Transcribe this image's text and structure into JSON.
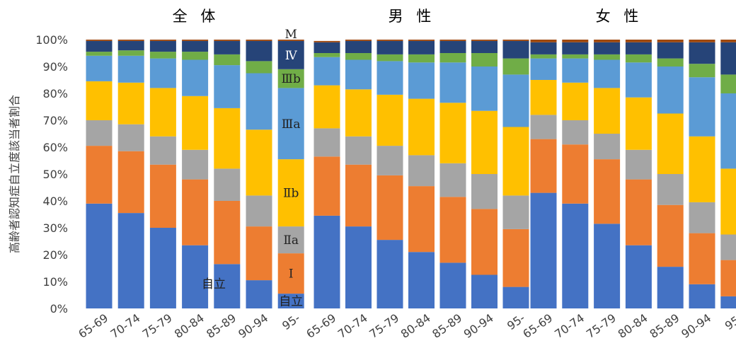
{
  "chart_data": {
    "type": "bar",
    "stacked": true,
    "ylabel": "高齢者認知症自立度該当者割合",
    "ylim": [
      0,
      100
    ],
    "yticks": [
      "0%",
      "10%",
      "20%",
      "30%",
      "40%",
      "50%",
      "60%",
      "70%",
      "80%",
      "90%",
      "100%"
    ],
    "grid": false,
    "categories": [
      "65-69",
      "70-74",
      "75-79",
      "80-84",
      "85-89",
      "90-94",
      "95-"
    ],
    "series_names": [
      "自立",
      "Ⅰ",
      "Ⅱa",
      "Ⅱb",
      "Ⅲa",
      "Ⅲb",
      "Ⅳ",
      "M"
    ],
    "series_colors": [
      "#4472c4",
      "#ed7d31",
      "#a5a5a5",
      "#ffc000",
      "#5b9bd5",
      "#70ad47",
      "#264478",
      "#9e480e"
    ],
    "groups": [
      {
        "title": "全 体",
        "bars": [
          [
            39,
            21.5,
            9.5,
            14.5,
            9.5,
            1.5,
            4,
            0.5
          ],
          [
            35.5,
            23,
            10,
            15.5,
            10,
            2,
            3.5,
            0.5
          ],
          [
            30,
            23.5,
            10.5,
            18,
            11,
            2.5,
            4,
            0.5
          ],
          [
            23.5,
            24.5,
            11,
            20,
            13.5,
            3,
            4,
            0.5
          ],
          [
            16.5,
            23.5,
            12,
            22.5,
            16,
            4,
            5,
            0.5
          ],
          [
            10.5,
            20,
            11.5,
            24.5,
            21,
            4.5,
            7.5,
            0.5
          ],
          [
            5.5,
            15,
            10,
            25,
            26.5,
            7,
            10.5,
            0.5
          ]
        ],
        "segment_labels": {
          "95-": [
            "自立",
            "Ⅰ",
            "Ⅱa",
            "Ⅱb",
            "Ⅲa",
            "Ⅲb",
            "Ⅳ",
            "M"
          ]
        }
      },
      {
        "title": "男 性",
        "bars": [
          [
            34.5,
            22,
            10.5,
            16,
            10.5,
            1.5,
            4,
            0.5
          ],
          [
            30.5,
            23,
            10.5,
            17.5,
            11,
            2.5,
            4.5,
            0.5
          ],
          [
            25.5,
            24,
            11,
            19,
            12.5,
            2.5,
            5,
            0.5
          ],
          [
            21,
            24.5,
            11.5,
            21,
            13.5,
            3,
            5,
            0.5
          ],
          [
            17,
            24.5,
            12.5,
            22.5,
            15,
            3.5,
            4.5,
            0.5
          ],
          [
            12.5,
            24.5,
            13,
            23.5,
            16.5,
            5,
            4.5,
            0.5
          ],
          [
            8,
            21.5,
            12.5,
            25.5,
            19.5,
            6,
            6.5,
            0.5
          ]
        ]
      },
      {
        "title": "女 性",
        "bars": [
          [
            43,
            20,
            9,
            13,
            8,
            1.5,
            4.5,
            1
          ],
          [
            39,
            22,
            9,
            14,
            9,
            1.5,
            4.5,
            1
          ],
          [
            31.5,
            24,
            9.5,
            17,
            10.5,
            2,
            4.5,
            1
          ],
          [
            23.5,
            24.5,
            11,
            19.5,
            13,
            3,
            4.5,
            1
          ],
          [
            15.5,
            23,
            11.5,
            22.5,
            17.5,
            3,
            6,
            1
          ],
          [
            9,
            19,
            11.5,
            24.5,
            22,
            5,
            8,
            1
          ],
          [
            4.5,
            13.5,
            9.5,
            24.5,
            28,
            7,
            12,
            1
          ]
        ]
      }
    ]
  }
}
